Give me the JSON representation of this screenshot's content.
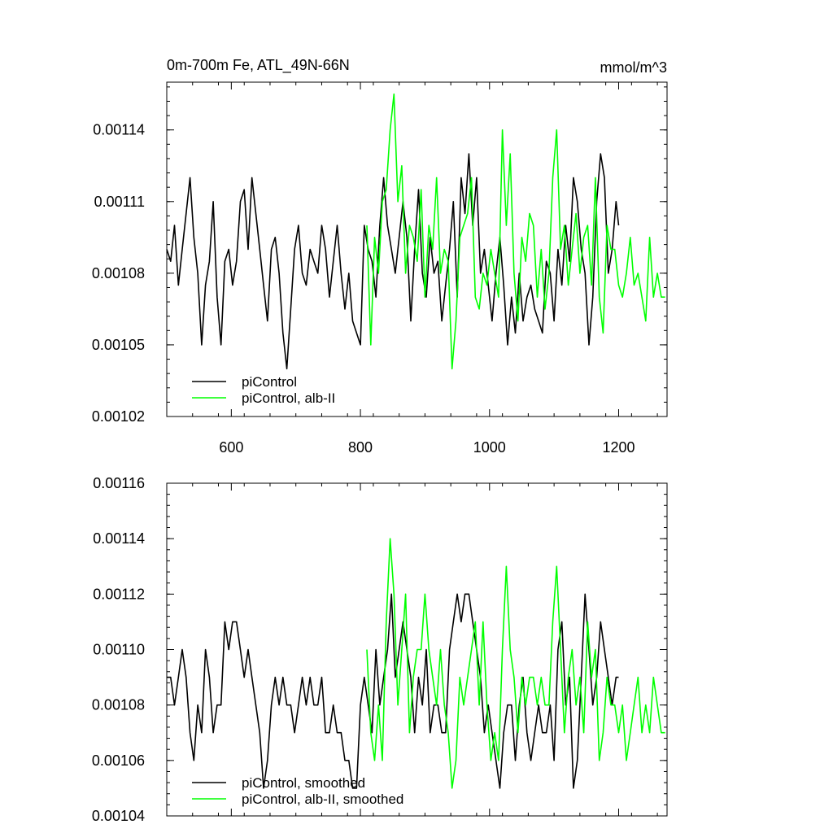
{
  "chart_data": [
    {
      "type": "line",
      "title": "0m-700m Fe, ATL_49N-66N",
      "units": "mmol/m^3",
      "xlim": [
        500,
        1275
      ],
      "ylim": [
        0.00102,
        0.00116
      ],
      "xticks": [
        600,
        800,
        1000,
        1200
      ],
      "xtick_labels": [
        "600",
        "800",
        "1000",
        "1200"
      ],
      "yticks": [
        0.00102,
        0.00105,
        0.00108,
        0.00111,
        0.00114
      ],
      "ytick_labels": [
        "0.00102",
        "0.00105",
        "0.00108",
        "0.00111",
        "0.00114"
      ],
      "legend_position": "bottom-left",
      "series": [
        {
          "name": "piControl",
          "color": "#000000",
          "x": [
            500,
            506,
            512,
            518,
            524,
            530,
            536,
            542,
            548,
            554,
            560,
            566,
            572,
            578,
            584,
            590,
            596,
            602,
            608,
            614,
            620,
            626,
            632,
            638,
            644,
            650,
            656,
            662,
            668,
            674,
            680,
            686,
            692,
            698,
            704,
            710,
            716,
            722,
            728,
            734,
            740,
            746,
            752,
            758,
            764,
            770,
            776,
            782,
            788,
            794,
            800,
            806,
            812,
            818,
            824,
            830,
            836,
            842,
            848,
            854,
            860,
            866,
            872,
            878,
            884,
            890,
            896,
            902,
            908,
            914,
            920,
            926,
            932,
            938,
            944,
            950,
            956,
            962,
            968,
            974,
            980,
            986,
            992,
            998,
            1004,
            1010,
            1016,
            1022,
            1028,
            1034,
            1040,
            1046,
            1052,
            1058,
            1064,
            1070,
            1076,
            1082,
            1088,
            1094,
            1100,
            1106,
            1112,
            1118,
            1124,
            1130,
            1136,
            1142,
            1148,
            1154,
            1160,
            1166,
            1172,
            1178,
            1184,
            1190,
            1196,
            1200
          ],
          "values": [
            0.00109,
            0.001085,
            0.0011,
            0.001075,
            0.00109,
            0.001105,
            0.00112,
            0.001095,
            0.00108,
            0.00105,
            0.001075,
            0.001085,
            0.00111,
            0.00107,
            0.00105,
            0.001085,
            0.00109,
            0.001075,
            0.001085,
            0.00111,
            0.001115,
            0.00109,
            0.00112,
            0.001105,
            0.00109,
            0.001075,
            0.00106,
            0.00109,
            0.001095,
            0.00108,
            0.001055,
            0.00104,
            0.001065,
            0.00109,
            0.0011,
            0.00108,
            0.001075,
            0.00109,
            0.001085,
            0.00108,
            0.0011,
            0.00109,
            0.00107,
            0.001085,
            0.0011,
            0.00108,
            0.001065,
            0.00108,
            0.00106,
            0.001055,
            0.00105,
            0.0011,
            0.00109,
            0.001085,
            0.00107,
            0.0011,
            0.00112,
            0.0011,
            0.00109,
            0.00108,
            0.001095,
            0.00111,
            0.001095,
            0.00106,
            0.00109,
            0.001115,
            0.00108,
            0.00107,
            0.001095,
            0.00108,
            0.001085,
            0.00106,
            0.001075,
            0.00109,
            0.00111,
            0.00107,
            0.00112,
            0.001105,
            0.00113,
            0.0011,
            0.00112,
            0.00108,
            0.00109,
            0.001075,
            0.00106,
            0.00108,
            0.001095,
            0.001075,
            0.00105,
            0.00107,
            0.001055,
            0.00108,
            0.00106,
            0.00107,
            0.001075,
            0.001065,
            0.00106,
            0.001055,
            0.001085,
            0.00108,
            0.00106,
            0.00109,
            0.001075,
            0.0011,
            0.001085,
            0.00112,
            0.00111,
            0.00109,
            0.00108,
            0.00105,
            0.00107,
            0.00111,
            0.00113,
            0.00112,
            0.00108,
            0.00109,
            0.00111,
            0.0011
          ]
        },
        {
          "name": "piControl, alb-II",
          "color": "#00ff00",
          "x": [
            810,
            816,
            822,
            828,
            834,
            840,
            846,
            852,
            858,
            864,
            870,
            876,
            882,
            888,
            894,
            900,
            906,
            912,
            918,
            924,
            930,
            936,
            942,
            948,
            954,
            960,
            966,
            972,
            978,
            984,
            990,
            996,
            1002,
            1008,
            1014,
            1020,
            1026,
            1032,
            1038,
            1044,
            1050,
            1056,
            1062,
            1068,
            1074,
            1080,
            1086,
            1092,
            1098,
            1104,
            1110,
            1116,
            1122,
            1128,
            1134,
            1140,
            1146,
            1152,
            1158,
            1164,
            1170,
            1176,
            1182,
            1188,
            1194,
            1200,
            1206,
            1212,
            1218,
            1224,
            1230,
            1236,
            1242,
            1248,
            1254,
            1260,
            1266,
            1272
          ],
          "values": [
            0.0011,
            0.00105,
            0.001095,
            0.00108,
            0.00111,
            0.001115,
            0.00114,
            0.001155,
            0.00111,
            0.001125,
            0.00108,
            0.0011,
            0.001095,
            0.001085,
            0.001115,
            0.00107,
            0.0011,
            0.00109,
            0.00112,
            0.00108,
            0.00109,
            0.001085,
            0.00104,
            0.00106,
            0.001095,
            0.0011,
            0.001105,
            0.00112,
            0.00107,
            0.001065,
            0.00108,
            0.001075,
            0.00109,
            0.00108,
            0.00107,
            0.00114,
            0.0011,
            0.00113,
            0.00108,
            0.00106,
            0.001095,
            0.001085,
            0.001105,
            0.0011,
            0.00107,
            0.00109,
            0.001065,
            0.00108,
            0.00112,
            0.00114,
            0.00109,
            0.0011,
            0.001075,
            0.00109,
            0.001105,
            0.00108,
            0.001095,
            0.0011,
            0.001075,
            0.00112,
            0.00107,
            0.001055,
            0.0011,
            0.00109,
            0.00109,
            0.001075,
            0.00107,
            0.00108,
            0.001095,
            0.001075,
            0.00108,
            0.00107,
            0.00106,
            0.001095,
            0.00107,
            0.00108,
            0.00107,
            0.00107
          ]
        }
      ]
    },
    {
      "type": "line",
      "title": "",
      "xlim": [
        500,
        1275
      ],
      "ylim": [
        0.00104,
        0.00116
      ],
      "xticks": [
        600,
        800,
        1000,
        1200
      ],
      "yticks": [
        0.00104,
        0.00106,
        0.00108,
        0.0011,
        0.00112,
        0.00114,
        0.00116
      ],
      "ytick_labels": [
        "0.00104",
        "0.00106",
        "0.00108",
        "0.00110",
        "0.00112",
        "0.00114",
        "0.00116"
      ],
      "legend_position": "bottom-left",
      "series": [
        {
          "name": "piControl, smoothed",
          "color": "#000000",
          "x": [
            500,
            506,
            512,
            518,
            524,
            530,
            536,
            542,
            548,
            554,
            560,
            566,
            572,
            578,
            584,
            590,
            596,
            602,
            608,
            614,
            620,
            626,
            632,
            638,
            644,
            650,
            656,
            662,
            668,
            674,
            680,
            686,
            692,
            698,
            704,
            710,
            716,
            722,
            728,
            734,
            740,
            746,
            752,
            758,
            764,
            770,
            776,
            782,
            788,
            794,
            800,
            806,
            812,
            818,
            824,
            830,
            836,
            842,
            848,
            854,
            860,
            866,
            872,
            878,
            884,
            890,
            896,
            902,
            908,
            914,
            920,
            926,
            932,
            938,
            944,
            950,
            956,
            962,
            968,
            974,
            980,
            986,
            992,
            998,
            1004,
            1010,
            1016,
            1022,
            1028,
            1034,
            1040,
            1046,
            1052,
            1058,
            1064,
            1070,
            1076,
            1082,
            1088,
            1094,
            1100,
            1106,
            1112,
            1118,
            1124,
            1130,
            1136,
            1142,
            1148,
            1154,
            1160,
            1166,
            1172,
            1178,
            1184,
            1190,
            1196,
            1200
          ],
          "values": [
            0.00109,
            0.00109,
            0.00108,
            0.00109,
            0.0011,
            0.00109,
            0.00107,
            0.00106,
            0.00108,
            0.00107,
            0.0011,
            0.00109,
            0.00107,
            0.00108,
            0.00108,
            0.00111,
            0.0011,
            0.00111,
            0.00111,
            0.0011,
            0.00109,
            0.0011,
            0.00109,
            0.00108,
            0.00107,
            0.00105,
            0.00106,
            0.00108,
            0.00109,
            0.00108,
            0.00109,
            0.00108,
            0.00108,
            0.00107,
            0.00108,
            0.00109,
            0.00108,
            0.00109,
            0.00108,
            0.00108,
            0.00109,
            0.00107,
            0.00107,
            0.00108,
            0.00107,
            0.00107,
            0.00106,
            0.00106,
            0.00105,
            0.00105,
            0.00108,
            0.00109,
            0.00108,
            0.00107,
            0.0011,
            0.00108,
            0.00109,
            0.0011,
            0.00112,
            0.00109,
            0.0011,
            0.00111,
            0.0011,
            0.00109,
            0.00107,
            0.00109,
            0.00108,
            0.0011,
            0.00107,
            0.00108,
            0.00108,
            0.00107,
            0.00107,
            0.0011,
            0.00111,
            0.00112,
            0.00111,
            0.00112,
            0.00112,
            0.00111,
            0.0011,
            0.00109,
            0.00107,
            0.00108,
            0.00107,
            0.00106,
            0.00105,
            0.00107,
            0.00108,
            0.00108,
            0.00106,
            0.00108,
            0.00109,
            0.00107,
            0.00106,
            0.00107,
            0.00108,
            0.00107,
            0.00107,
            0.00108,
            0.00106,
            0.0011,
            0.00111,
            0.00108,
            0.00109,
            0.00105,
            0.00106,
            0.00109,
            0.00112,
            0.0011,
            0.00108,
            0.00109,
            0.00111,
            0.0011,
            0.00109,
            0.00108,
            0.00109,
            0.00109
          ]
        },
        {
          "name": "piControl, alb-II, smoothed",
          "color": "#00ff00",
          "x": [
            810,
            816,
            822,
            828,
            834,
            840,
            846,
            852,
            858,
            864,
            870,
            876,
            882,
            888,
            894,
            900,
            906,
            912,
            918,
            924,
            930,
            936,
            942,
            948,
            954,
            960,
            966,
            972,
            978,
            984,
            990,
            996,
            1002,
            1008,
            1014,
            1020,
            1026,
            1032,
            1038,
            1044,
            1050,
            1056,
            1062,
            1068,
            1074,
            1080,
            1086,
            1092,
            1098,
            1104,
            1110,
            1116,
            1122,
            1128,
            1134,
            1140,
            1146,
            1152,
            1158,
            1164,
            1170,
            1176,
            1182,
            1188,
            1194,
            1200,
            1206,
            1212,
            1218,
            1224,
            1230,
            1236,
            1242,
            1248,
            1254,
            1260,
            1266,
            1272
          ],
          "values": [
            0.0011,
            0.00107,
            0.00106,
            0.00108,
            0.00106,
            0.00111,
            0.00114,
            0.00112,
            0.00108,
            0.0011,
            0.00112,
            0.00107,
            0.00109,
            0.0011,
            0.0011,
            0.00112,
            0.0011,
            0.00109,
            0.00108,
            0.0011,
            0.00108,
            0.00107,
            0.00105,
            0.00106,
            0.00109,
            0.00108,
            0.00109,
            0.0011,
            0.00111,
            0.00108,
            0.00111,
            0.00108,
            0.00106,
            0.00107,
            0.00106,
            0.0011,
            0.00113,
            0.0011,
            0.00109,
            0.00107,
            0.00109,
            0.00108,
            0.00109,
            0.00109,
            0.00108,
            0.00109,
            0.00108,
            0.00108,
            0.00111,
            0.00113,
            0.0011,
            0.00107,
            0.00109,
            0.0011,
            0.00108,
            0.00109,
            0.00107,
            0.00111,
            0.00109,
            0.0011,
            0.00106,
            0.00107,
            0.00109,
            0.00108,
            0.00108,
            0.00107,
            0.00108,
            0.00106,
            0.00107,
            0.00108,
            0.00109,
            0.00107,
            0.00108,
            0.00107,
            0.00109,
            0.00108,
            0.00107,
            0.00107
          ]
        }
      ]
    }
  ]
}
